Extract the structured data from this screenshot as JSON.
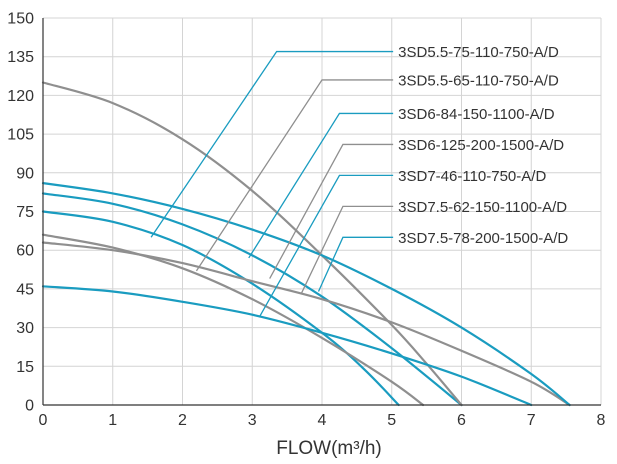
{
  "chart_data": {
    "type": "line",
    "title": "",
    "xlabel": "FLOW(m³/h)",
    "ylabel": "",
    "xlim": [
      0,
      8
    ],
    "ylim": [
      0,
      150
    ],
    "xticks": [
      "0",
      "1",
      "2",
      "3",
      "4",
      "5",
      "6",
      "7",
      "8"
    ],
    "yticks": [
      "0",
      "15",
      "30",
      "45",
      "60",
      "75",
      "90",
      "105",
      "120",
      "135",
      "150"
    ],
    "grid": true,
    "colors": {
      "blue": "#1a9cc0",
      "gray": "#8f8f8f",
      "axis": "#333333",
      "grid": "#d4d4d4",
      "text": "#333333"
    },
    "series": [
      {
        "name": "3SD5.5-75-110-750-A/D",
        "color": "blue",
        "points": [
          [
            0,
            75
          ],
          [
            1,
            71
          ],
          [
            2,
            62
          ],
          [
            3,
            47
          ],
          [
            4,
            28
          ],
          [
            4.6,
            14
          ],
          [
            5.1,
            0
          ]
        ],
        "leader": [
          [
            1.55,
            65
          ],
          [
            3.35,
            137
          ]
        ]
      },
      {
        "name": "3SD5.5-65-110-750-A/D",
        "color": "gray",
        "points": [
          [
            0,
            66
          ],
          [
            1,
            61
          ],
          [
            2,
            53
          ],
          [
            3,
            41
          ],
          [
            4,
            26
          ],
          [
            5,
            9
          ],
          [
            5.45,
            0
          ]
        ],
        "leader": [
          [
            2.2,
            52
          ],
          [
            4,
            126
          ]
        ]
      },
      {
        "name": "3SD6-84-150-1100-A/D",
        "color": "blue",
        "points": [
          [
            0,
            82
          ],
          [
            1,
            78
          ],
          [
            2,
            70
          ],
          [
            3,
            58
          ],
          [
            4,
            42
          ],
          [
            5,
            22
          ],
          [
            6,
            0
          ]
        ],
        "leader": [
          [
            2.95,
            57
          ],
          [
            4.25,
            113
          ]
        ]
      },
      {
        "name": "3SD6-125-200-1500-A/D",
        "color": "gray",
        "points": [
          [
            0,
            125
          ],
          [
            1,
            117
          ],
          [
            2,
            103
          ],
          [
            3,
            83
          ],
          [
            4,
            58
          ],
          [
            5,
            31
          ],
          [
            5.5,
            16
          ],
          [
            6,
            0
          ]
        ],
        "leader": [
          [
            3.25,
            49
          ],
          [
            4.3,
            101
          ]
        ]
      },
      {
        "name": "3SD7-46-110-750-A/D",
        "color": "blue",
        "points": [
          [
            0,
            46
          ],
          [
            1,
            44
          ],
          [
            2,
            40
          ],
          [
            3,
            35
          ],
          [
            4,
            28
          ],
          [
            5,
            20
          ],
          [
            6,
            11
          ],
          [
            7,
            0
          ]
        ],
        "leader": [
          [
            3.1,
            34
          ],
          [
            4.25,
            89
          ]
        ]
      },
      {
        "name": "3SD7.5-62-150-1100-A/D",
        "color": "gray",
        "points": [
          [
            0,
            63
          ],
          [
            1,
            60
          ],
          [
            2,
            55
          ],
          [
            3,
            48
          ],
          [
            4,
            41
          ],
          [
            5,
            32
          ],
          [
            6,
            21
          ],
          [
            7,
            9
          ],
          [
            7.55,
            0
          ]
        ],
        "leader": [
          [
            3.7,
            43
          ],
          [
            4.3,
            77
          ]
        ]
      },
      {
        "name": "3SD7.5-78-200-1500-A/D",
        "color": "blue",
        "points": [
          [
            0,
            86
          ],
          [
            1,
            82
          ],
          [
            2,
            76
          ],
          [
            3,
            68
          ],
          [
            4,
            58
          ],
          [
            5,
            45
          ],
          [
            6,
            30
          ],
          [
            7,
            12
          ],
          [
            7.55,
            0
          ]
        ],
        "leader": [
          [
            3.95,
            44
          ],
          [
            4.3,
            65
          ]
        ]
      }
    ]
  }
}
